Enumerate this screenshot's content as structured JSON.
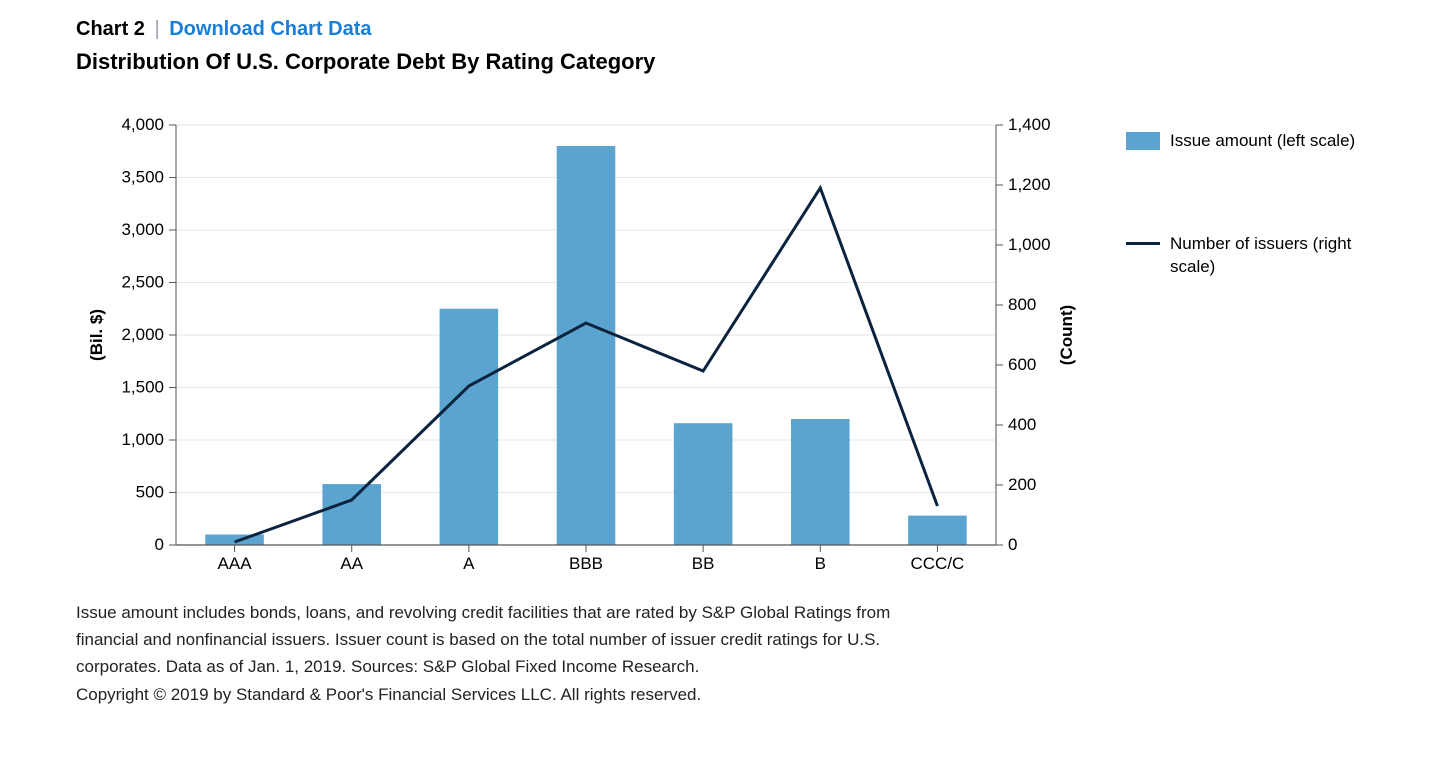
{
  "header": {
    "chart_label": "Chart 2",
    "separator": "|",
    "download_link": "Download Chart Data"
  },
  "title": "Distribution Of U.S. Corporate Debt By Rating Category",
  "chart": {
    "type": "bar+line",
    "background_color": "#ffffff",
    "grid_color": "#e6e6e6",
    "axis_line_color": "#555555",
    "tick_label_fontsize": 17,
    "axis_title_fontsize": 17,
    "categories": [
      "AAA",
      "AA",
      "A",
      "BBB",
      "BB",
      "B",
      "CCC/C"
    ],
    "bar_series": {
      "label": "Issue amount (left scale)",
      "color": "#5ba4cf",
      "bar_width_ratio": 0.5,
      "values": [
        100,
        580,
        2250,
        3800,
        1160,
        1200,
        280
      ]
    },
    "line_series": {
      "label": "Number of issuers (right scale)",
      "color": "#0c2340",
      "line_width": 3,
      "values": [
        10,
        150,
        530,
        740,
        580,
        1190,
        130
      ]
    },
    "left_axis": {
      "title": "(Bil. $)",
      "min": 0,
      "max": 4000,
      "tick_step": 500,
      "tick_labels": [
        "0",
        "500",
        "1,000",
        "1,500",
        "2,000",
        "2,500",
        "3,000",
        "3,500",
        "4,000"
      ]
    },
    "right_axis": {
      "title": "(Count)",
      "min": 0,
      "max": 1400,
      "tick_step": 200,
      "tick_labels": [
        "0",
        "200",
        "400",
        "600",
        "800",
        "1,000",
        "1,200",
        "1,400"
      ]
    }
  },
  "legend": {
    "bar_label": "Issue amount (left scale)",
    "line_label": "Number of issuers (right scale)"
  },
  "notes": {
    "line1": "Issue amount includes bonds, loans, and revolving credit facilities that are rated by S&P Global Ratings from",
    "line2": "financial and nonfinancial issuers. Issuer count is based on the total number of issuer credit ratings for U.S.",
    "line3": "corporates. Data as of Jan. 1, 2019. Sources: S&P Global Fixed Income Research.",
    "line4": "Copyright © 2019 by Standard & Poor's Financial Services LLC. All rights reserved."
  }
}
